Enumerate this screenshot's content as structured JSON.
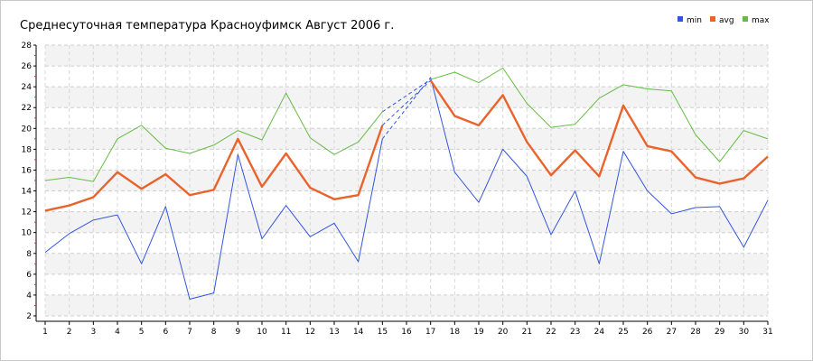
{
  "chart_data": {
    "type": "line",
    "title": "Среднесуточная температура Красноуфимск  Август 2006 г.",
    "xlabel": "",
    "ylabel": "",
    "x": [
      1,
      2,
      3,
      4,
      5,
      6,
      7,
      8,
      9,
      10,
      11,
      12,
      13,
      14,
      15,
      16,
      17,
      18,
      19,
      20,
      21,
      22,
      23,
      24,
      25,
      26,
      27,
      28,
      29,
      30,
      31
    ],
    "ylim": [
      2,
      28
    ],
    "yticks": [
      2,
      4,
      6,
      8,
      10,
      12,
      14,
      16,
      18,
      20,
      22,
      24,
      26,
      28
    ],
    "grid": true,
    "legend_position": "top-right",
    "missing_days_interpolated": [
      16
    ],
    "series": [
      {
        "name": "min",
        "color": "#3355dd",
        "values": [
          8.1,
          9.9,
          11.2,
          11.7,
          7.0,
          12.5,
          3.6,
          4.2,
          17.5,
          9.4,
          12.6,
          9.6,
          10.9,
          7.2,
          19.0,
          null,
          24.9,
          15.8,
          12.9,
          18.0,
          15.4,
          9.8,
          14.0,
          7.0,
          17.8,
          14.0,
          11.8,
          12.4,
          12.5,
          8.6,
          13.1
        ]
      },
      {
        "name": "avg",
        "color": "#e8642c",
        "values": [
          12.1,
          12.6,
          13.4,
          15.8,
          14.2,
          15.6,
          13.6,
          14.1,
          19.0,
          14.4,
          17.6,
          14.3,
          13.2,
          13.6,
          20.3,
          null,
          24.6,
          21.2,
          20.3,
          23.2,
          18.7,
          15.5,
          17.9,
          15.4,
          22.2,
          18.3,
          17.8,
          15.3,
          14.7,
          15.2,
          17.3
        ]
      },
      {
        "name": "max",
        "color": "#66bb44",
        "values": [
          15.0,
          15.3,
          14.9,
          19.0,
          20.3,
          18.1,
          17.6,
          18.4,
          19.8,
          18.9,
          23.4,
          19.1,
          17.5,
          18.7,
          21.6,
          null,
          24.7,
          25.4,
          24.4,
          25.8,
          22.4,
          20.1,
          20.4,
          22.9,
          24.2,
          23.8,
          23.6,
          19.4,
          16.8,
          19.8,
          19.0
        ]
      }
    ]
  }
}
